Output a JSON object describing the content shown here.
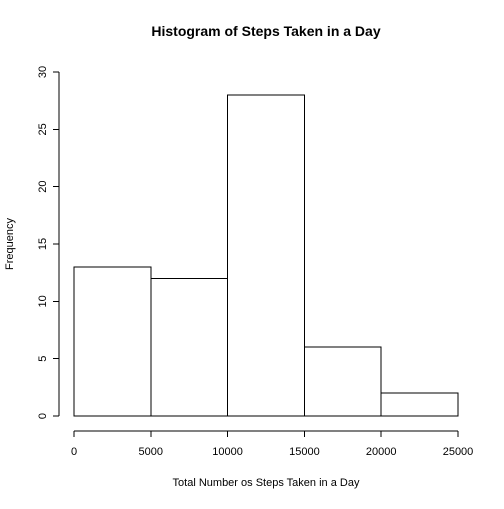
{
  "chart_data": {
    "type": "bar",
    "title": "Histogram of Steps Taken in a Day",
    "xlabel": "Total Number os Steps Taken in a Day",
    "ylabel": "Frequency",
    "bins": [
      {
        "start": 0,
        "end": 5000,
        "count": 13
      },
      {
        "start": 5000,
        "end": 10000,
        "count": 12
      },
      {
        "start": 10000,
        "end": 15000,
        "count": 28
      },
      {
        "start": 15000,
        "end": 20000,
        "count": 6
      },
      {
        "start": 20000,
        "end": 25000,
        "count": 2
      }
    ],
    "xlim": [
      0,
      25000
    ],
    "ylim": [
      0,
      30
    ],
    "xticks": [
      "0",
      "5000",
      "10000",
      "15000",
      "20000",
      "25000"
    ],
    "yticks": [
      "0",
      "5",
      "10",
      "15",
      "20",
      "25",
      "30"
    ],
    "grid": false,
    "bar_fill": "#ffffff",
    "bar_stroke": "#000000"
  }
}
